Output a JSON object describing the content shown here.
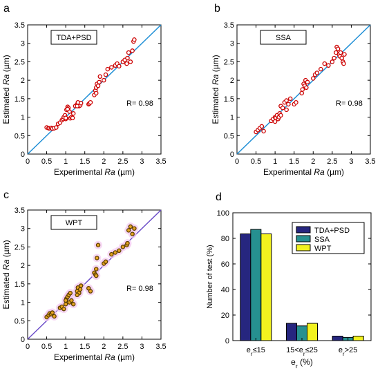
{
  "chart_data": [
    {
      "panel": "a",
      "type": "scatter",
      "legend_box": "TDA+PSD",
      "xlabel_prefix": "Experimental ",
      "xlabel_var": "Ra",
      "xlabel_unit": " (µm)",
      "ylabel_prefix": "Estimated ",
      "ylabel_var": "Ra",
      "ylabel_unit": " (µm)",
      "xlim": [
        0,
        3.5
      ],
      "ylim": [
        0,
        3.5
      ],
      "xticks": [
        "0",
        "0.5",
        "1",
        "1.5",
        "2",
        "2.5",
        "3",
        "3.5"
      ],
      "yticks": [
        "0",
        "0.5",
        "1",
        "1.5",
        "2",
        "2.5",
        "3",
        "3.5"
      ],
      "annotation": "R= 0.98",
      "colors": {
        "marker_edge": "#cc0000",
        "marker_fill": "#ffffff",
        "line": "#1f8fd6"
      },
      "x": [
        0.5,
        0.55,
        0.58,
        0.62,
        0.65,
        0.7,
        0.75,
        0.8,
        0.85,
        0.9,
        0.93,
        0.95,
        0.98,
        1.0,
        1.02,
        1.05,
        1.07,
        1.1,
        1.12,
        1.15,
        1.18,
        1.2,
        1.25,
        1.3,
        1.32,
        1.35,
        1.38,
        1.4,
        1.6,
        1.62,
        1.65,
        1.75,
        1.78,
        1.8,
        1.82,
        1.85,
        1.88,
        1.9,
        2.0,
        2.05,
        2.1,
        2.2,
        2.3,
        2.35,
        2.4,
        2.5,
        2.55,
        2.6,
        2.62,
        2.65,
        2.7,
        2.75,
        2.78,
        2.8,
        1.0,
        1.05,
        1.3,
        1.8
      ],
      "y": [
        0.72,
        0.7,
        0.7,
        0.71,
        0.69,
        0.7,
        0.72,
        0.82,
        0.85,
        0.92,
        0.95,
        1.0,
        1.05,
        0.95,
        1.2,
        1.28,
        1.25,
        1.15,
        0.97,
        1.0,
        0.98,
        1.1,
        1.3,
        1.35,
        1.4,
        1.3,
        1.32,
        1.38,
        1.35,
        1.37,
        1.4,
        1.6,
        1.72,
        1.8,
        1.9,
        1.85,
        1.95,
        2.1,
        2.0,
        2.15,
        2.3,
        2.35,
        2.4,
        2.45,
        2.38,
        2.5,
        2.55,
        2.45,
        2.6,
        2.75,
        2.5,
        2.8,
        3.05,
        3.1,
        0.98,
        1.22,
        1.3,
        1.65
      ]
    },
    {
      "panel": "b",
      "type": "scatter",
      "legend_box": "SSA",
      "xlabel_prefix": "Experimental ",
      "xlabel_var": "Ra",
      "xlabel_unit": " (µm)",
      "ylabel_prefix": "Estimated ",
      "ylabel_var": "Ra",
      "ylabel_unit": " (µm)",
      "xlim": [
        0,
        3.5
      ],
      "ylim": [
        0,
        3.5
      ],
      "xticks": [
        "0",
        "0.5",
        "1",
        "1.5",
        "2",
        "2.5",
        "3",
        "3.5"
      ],
      "yticks": [
        "0",
        "0.5",
        "1",
        "1.5",
        "2",
        "2.5",
        "3",
        "3.5"
      ],
      "annotation": "R= 0.98",
      "colors": {
        "marker_edge": "#cc0000",
        "marker_fill": "#ffffff",
        "line": "#1f8fd6"
      },
      "x": [
        0.5,
        0.55,
        0.6,
        0.65,
        0.7,
        0.9,
        0.95,
        1.0,
        1.02,
        1.05,
        1.08,
        1.1,
        1.12,
        1.15,
        1.2,
        1.25,
        1.3,
        1.35,
        1.4,
        1.5,
        1.55,
        1.7,
        1.72,
        1.75,
        1.78,
        1.8,
        1.82,
        1.85,
        2.0,
        2.05,
        2.1,
        2.2,
        2.3,
        2.4,
        2.5,
        2.55,
        2.6,
        2.62,
        2.65,
        2.68,
        2.7,
        2.72,
        2.75,
        2.78,
        2.8,
        2.82,
        1.0,
        1.15,
        1.3
      ],
      "y": [
        0.6,
        0.65,
        0.7,
        0.75,
        0.62,
        0.9,
        0.95,
        1.0,
        0.98,
        1.05,
        0.95,
        1.0,
        1.1,
        1.3,
        1.25,
        1.4,
        1.45,
        1.35,
        1.5,
        1.35,
        1.4,
        1.65,
        1.75,
        1.9,
        1.85,
        2.0,
        1.8,
        1.95,
        2.05,
        2.15,
        2.2,
        2.3,
        2.45,
        2.4,
        2.5,
        2.6,
        2.75,
        2.9,
        2.85,
        2.7,
        2.65,
        2.75,
        2.6,
        2.5,
        2.45,
        2.7,
        0.88,
        1.05,
        1.2
      ]
    },
    {
      "panel": "c",
      "type": "scatter",
      "legend_box": "WPT",
      "xlabel_prefix": "Experimental ",
      "xlabel_var": "Ra",
      "xlabel_unit": " (µm)",
      "ylabel_prefix": "Estimated ",
      "ylabel_var": "Ra",
      "ylabel_unit": " (µm)",
      "xlim": [
        0,
        3.5
      ],
      "ylim": [
        0,
        3.5
      ],
      "xticks": [
        "0",
        "0.5",
        "1",
        "1.5",
        "2",
        "2.5",
        "3",
        "3.5"
      ],
      "yticks": [
        "0",
        "0.5",
        "1",
        "1.5",
        "2",
        "2.5",
        "3",
        "3.5"
      ],
      "annotation": "R= 0.98",
      "colors": {
        "marker_edge": "#5a3e00",
        "marker_fill": "#e6a422",
        "halo": "#f3c9ef",
        "line": "#6b4dc8"
      },
      "x": [
        0.5,
        0.55,
        0.58,
        0.62,
        0.65,
        0.7,
        0.85,
        0.9,
        0.95,
        1.0,
        1.02,
        1.05,
        1.08,
        1.1,
        1.12,
        1.15,
        1.2,
        1.3,
        1.32,
        1.35,
        1.38,
        1.4,
        1.6,
        1.65,
        1.75,
        1.78,
        1.8,
        1.82,
        1.85,
        2.0,
        2.05,
        2.2,
        2.3,
        2.4,
        2.5,
        2.6,
        2.62,
        2.65,
        2.7,
        2.75,
        2.8,
        1.8,
        1.0,
        1.3
      ],
      "y": [
        0.6,
        0.65,
        0.7,
        0.68,
        0.72,
        0.62,
        0.85,
        0.88,
        0.82,
        0.95,
        1.1,
        1.15,
        1.2,
        1.0,
        1.25,
        1.05,
        0.95,
        1.3,
        1.4,
        1.25,
        1.35,
        1.45,
        1.38,
        1.3,
        1.8,
        1.75,
        1.9,
        2.2,
        2.55,
        2.05,
        2.1,
        2.3,
        2.35,
        2.4,
        2.5,
        2.55,
        2.6,
        2.95,
        3.05,
        2.85,
        3.0,
        1.72,
        1.05,
        1.2
      ]
    },
    {
      "panel": "d",
      "type": "bar",
      "categories": [
        "e_r≤15",
        "15<e_r≤25",
        "e_r>25"
      ],
      "category_labels": [
        [
          {
            "t": "e"
          },
          {
            "t": "r",
            "sub": true
          },
          {
            "t": "≤15"
          }
        ],
        [
          {
            "t": "15<e"
          },
          {
            "t": "r",
            "sub": true
          },
          {
            "t": "≤25"
          }
        ],
        [
          {
            "t": "e"
          },
          {
            "t": "r",
            "sub": true
          },
          {
            "t": ">25"
          }
        ]
      ],
      "series": [
        {
          "name": "TDA+PSD",
          "values": [
            83.5,
            13.5,
            3.5
          ],
          "color": "#26267f"
        },
        {
          "name": "SSA",
          "values": [
            87,
            11.5,
            2.5
          ],
          "color": "#269090"
        },
        {
          "name": "WPT",
          "values": [
            83.5,
            13.5,
            3.5
          ],
          "color": "#f2f21f"
        }
      ],
      "xlabel_main": "e",
      "xlabel_sub": "r",
      "xlabel_rest": " (%)",
      "ylabel": "Number of test (%)",
      "ylim": [
        0,
        100
      ],
      "yticks": [
        "0",
        "20",
        "40",
        "60",
        "80",
        "100"
      ],
      "legend_position": "top-right"
    }
  ],
  "panel_letters": [
    "a",
    "b",
    "c",
    "d"
  ]
}
